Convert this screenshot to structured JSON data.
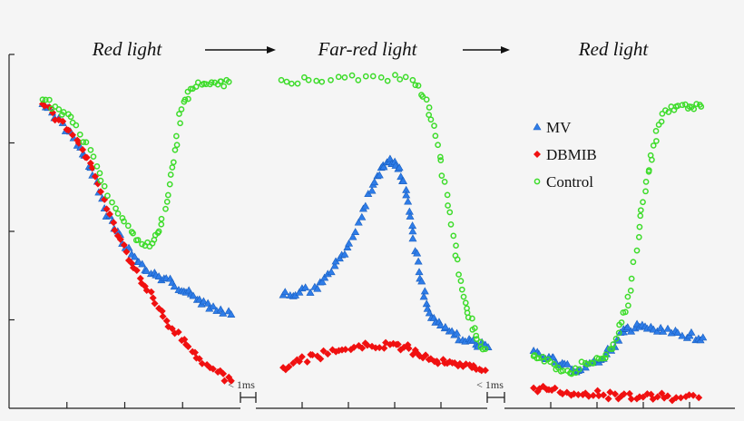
{
  "chart_data": {
    "type": "scatter",
    "title": "",
    "xlabel": "",
    "ylabel": "",
    "ylim": [
      0,
      4
    ],
    "grid": false,
    "legend_position": "right",
    "phase_titles": [
      "Red light",
      "Far-red light",
      "Red light"
    ],
    "break_labels": [
      "< 1ms",
      "< 1ms"
    ],
    "segments": [
      {
        "xlim": [
          0,
          4
        ]
      },
      {
        "xlim": [
          0,
          5
        ]
      },
      {
        "xlim": [
          0,
          5
        ]
      }
    ],
    "series": [
      {
        "name": "MV",
        "marker": "triangle",
        "color": "#2f7de8",
        "segments": [
          [
            [
              0.58,
              3.44
            ],
            [
              0.86,
              3.28
            ],
            [
              1.18,
              2.97
            ],
            [
              1.41,
              2.72
            ],
            [
              1.65,
              2.26
            ],
            [
              1.88,
              2.0
            ],
            [
              2.12,
              1.74
            ],
            [
              2.35,
              1.56
            ],
            [
              2.59,
              1.49
            ],
            [
              2.82,
              1.42
            ],
            [
              3.06,
              1.31
            ],
            [
              3.29,
              1.23
            ],
            [
              3.53,
              1.15
            ],
            [
              3.84,
              1.06
            ]
          ],
          [
            [
              0.59,
              1.28
            ],
            [
              0.94,
              1.31
            ],
            [
              1.33,
              1.35
            ],
            [
              1.63,
              1.54
            ],
            [
              1.92,
              1.74
            ],
            [
              2.22,
              2.1
            ],
            [
              2.51,
              2.46
            ],
            [
              2.71,
              2.72
            ],
            [
              2.9,
              2.82
            ],
            [
              3.1,
              2.72
            ],
            [
              3.25,
              2.41
            ],
            [
              3.39,
              2.0
            ],
            [
              3.53,
              1.54
            ],
            [
              3.69,
              1.18
            ],
            [
              3.88,
              0.97
            ],
            [
              4.18,
              0.87
            ],
            [
              4.47,
              0.77
            ],
            [
              4.76,
              0.72
            ],
            [
              5.02,
              0.69
            ]
          ],
          [
            [
              0.63,
              0.65
            ],
            [
              0.96,
              0.58
            ],
            [
              1.25,
              0.51
            ],
            [
              1.55,
              0.41
            ],
            [
              1.84,
              0.51
            ],
            [
              2.14,
              0.56
            ],
            [
              2.43,
              0.77
            ],
            [
              2.63,
              0.9
            ],
            [
              2.92,
              0.92
            ],
            [
              3.22,
              0.89
            ],
            [
              3.61,
              0.85
            ],
            [
              4.0,
              0.82
            ],
            [
              4.29,
              0.8
            ]
          ]
        ]
      },
      {
        "name": "DBMIB",
        "marker": "diamond",
        "color": "#f01010",
        "segments": [
          [
            [
              0.58,
              3.44
            ],
            [
              0.86,
              3.26
            ],
            [
              1.18,
              3.03
            ],
            [
              1.41,
              2.77
            ],
            [
              1.65,
              2.36
            ],
            [
              1.88,
              1.95
            ],
            [
              2.12,
              1.64
            ],
            [
              2.35,
              1.38
            ],
            [
              2.59,
              1.13
            ],
            [
              2.82,
              0.9
            ],
            [
              3.06,
              0.72
            ],
            [
              3.29,
              0.56
            ],
            [
              3.61,
              0.41
            ],
            [
              3.84,
              0.31
            ]
          ],
          [
            [
              0.59,
              0.46
            ],
            [
              0.94,
              0.53
            ],
            [
              1.33,
              0.59
            ],
            [
              1.73,
              0.64
            ],
            [
              2.12,
              0.69
            ],
            [
              2.51,
              0.7
            ],
            [
              2.9,
              0.72
            ],
            [
              3.2,
              0.69
            ],
            [
              3.49,
              0.62
            ],
            [
              3.78,
              0.56
            ],
            [
              4.08,
              0.51
            ],
            [
              4.37,
              0.48
            ],
            [
              4.67,
              0.46
            ],
            [
              4.96,
              0.43
            ]
          ],
          [
            [
              0.63,
              0.23
            ],
            [
              0.96,
              0.21
            ],
            [
              1.35,
              0.18
            ],
            [
              1.75,
              0.17
            ],
            [
              2.14,
              0.15
            ],
            [
              2.53,
              0.14
            ],
            [
              2.92,
              0.13
            ],
            [
              3.31,
              0.13
            ],
            [
              3.71,
              0.12
            ],
            [
              4.2,
              0.12
            ]
          ]
        ]
      },
      {
        "name": "Control",
        "marker": "circle",
        "color": "#3ddc2a",
        "segments": [
          [
            [
              0.58,
              3.49
            ],
            [
              0.86,
              3.38
            ],
            [
              1.1,
              3.23
            ],
            [
              1.41,
              2.92
            ],
            [
              1.65,
              2.51
            ],
            [
              1.96,
              2.15
            ],
            [
              2.2,
              1.9
            ],
            [
              2.43,
              1.83
            ],
            [
              2.59,
              2.0
            ],
            [
              2.75,
              2.41
            ],
            [
              2.87,
              2.92
            ],
            [
              2.98,
              3.38
            ],
            [
              3.14,
              3.61
            ],
            [
              3.37,
              3.67
            ],
            [
              3.61,
              3.66
            ],
            [
              3.8,
              3.69
            ]
          ],
          [
            [
              0.55,
              3.71
            ],
            [
              1.14,
              3.71
            ],
            [
              1.92,
              3.74
            ],
            [
              2.71,
              3.74
            ],
            [
              3.39,
              3.71
            ],
            [
              3.69,
              3.49
            ],
            [
              3.88,
              3.08
            ],
            [
              4.08,
              2.56
            ],
            [
              4.27,
              1.95
            ],
            [
              4.43,
              1.44
            ],
            [
              4.57,
              1.08
            ],
            [
              4.76,
              0.82
            ],
            [
              4.96,
              0.67
            ]
          ],
          [
            [
              0.63,
              0.59
            ],
            [
              0.86,
              0.53
            ],
            [
              1.16,
              0.46
            ],
            [
              1.45,
              0.39
            ],
            [
              1.75,
              0.51
            ],
            [
              2.04,
              0.56
            ],
            [
              2.33,
              0.67
            ],
            [
              2.53,
              0.97
            ],
            [
              2.73,
              1.33
            ],
            [
              2.92,
              2.05
            ],
            [
              3.06,
              2.56
            ],
            [
              3.22,
              2.97
            ],
            [
              3.41,
              3.33
            ],
            [
              3.71,
              3.41
            ],
            [
              4.0,
              3.41
            ],
            [
              4.25,
              3.41
            ]
          ]
        ]
      }
    ]
  }
}
